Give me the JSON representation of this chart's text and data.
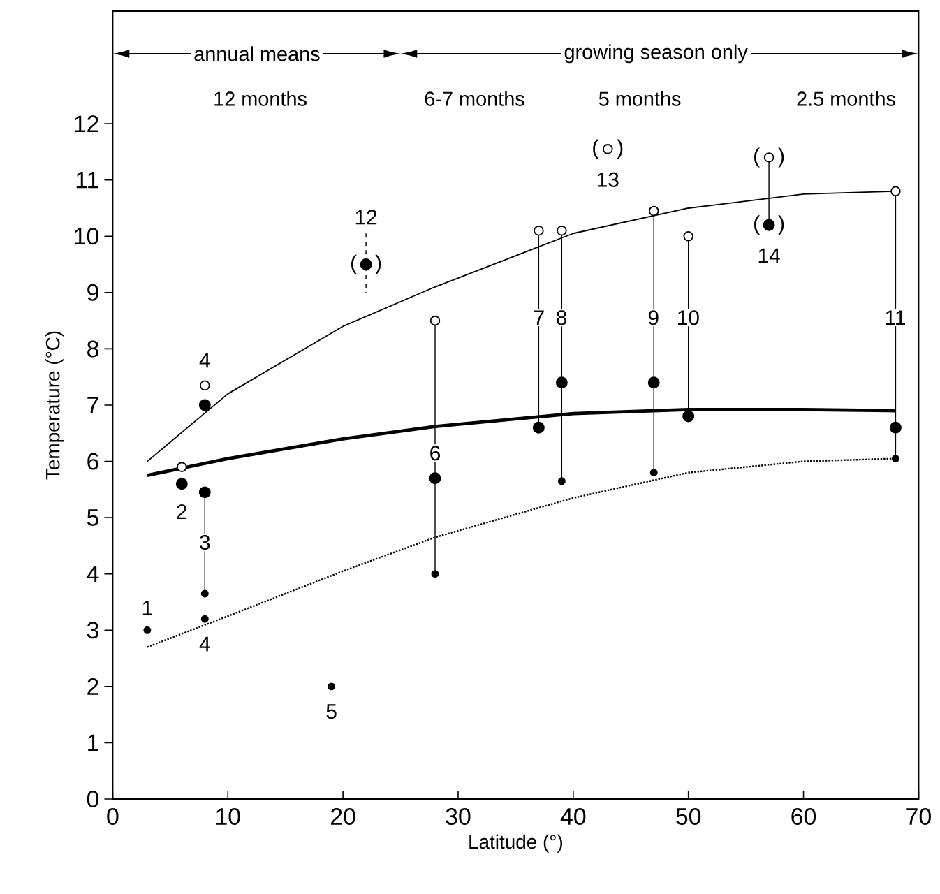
{
  "chart_data": {
    "type": "scatter",
    "xlabel": "Latitude (°)",
    "ylabel": "Temperature (°C)",
    "xlim": [
      0,
      70
    ],
    "ylim": [
      0,
      14
    ],
    "xticks": [
      0,
      10,
      20,
      30,
      40,
      50,
      60,
      70
    ],
    "yticks": [
      0,
      1,
      2,
      3,
      4,
      5,
      6,
      7,
      8,
      9,
      10,
      11,
      12
    ],
    "series": [
      {
        "type": "line",
        "color": "#000000",
        "x": [
          8,
          8
        ],
        "values": [
          5.45,
          3.65
        ]
      },
      {
        "type": "line",
        "color": "#000000",
        "x": [
          28,
          28
        ],
        "values": [
          8.5,
          4.0
        ]
      },
      {
        "type": "line",
        "color": "#000000",
        "x": [
          37,
          37
        ],
        "values": [
          10.1,
          6.6
        ]
      },
      {
        "type": "line",
        "color": "#000000",
        "x": [
          39,
          39
        ],
        "values": [
          10.1,
          5.65
        ]
      },
      {
        "type": "line",
        "color": "#000000",
        "x": [
          47,
          47
        ],
        "values": [
          10.45,
          5.8
        ]
      },
      {
        "type": "line",
        "color": "#000000",
        "x": [
          50,
          50
        ],
        "values": [
          10.0,
          6.8
        ]
      },
      {
        "type": "line",
        "color": "#000000",
        "x": [
          68,
          68
        ],
        "values": [
          10.8,
          6.05
        ]
      },
      {
        "type": "line",
        "color": "#000000",
        "x": [
          57,
          57
        ],
        "values": [
          11.4,
          10.2
        ]
      },
      {
        "type": "line",
        "color": "#000000",
        "line_style": "dashed",
        "x": [
          22,
          22
        ],
        "values": [
          10.05,
          9.0
        ]
      },
      {
        "type": "line",
        "color": "#000000",
        "x": [
          3,
          10,
          20,
          28,
          40,
          50,
          60,
          68
        ],
        "values": [
          6.0,
          7.2,
          8.4,
          9.1,
          10.05,
          10.5,
          10.75,
          10.8
        ]
      },
      {
        "type": "line",
        "color": "#000000",
        "x": [
          3,
          10,
          20,
          28,
          40,
          50,
          60,
          68
        ],
        "values": [
          5.75,
          6.05,
          6.4,
          6.62,
          6.85,
          6.92,
          6.92,
          6.9
        ]
      },
      {
        "type": "line",
        "color": "#000000",
        "line_style": "dotted",
        "x": [
          3,
          10,
          20,
          28,
          40,
          50,
          60,
          68
        ],
        "values": [
          2.7,
          3.25,
          4.05,
          4.65,
          5.35,
          5.8,
          6.0,
          6.05
        ]
      },
      {
        "color": "#ffffff",
        "marker": "circle",
        "x": [
          6,
          8,
          28,
          37,
          39,
          43,
          47,
          50,
          57,
          68
        ],
        "values": [
          5.9,
          7.35,
          8.5,
          10.1,
          10.1,
          11.55,
          10.45,
          10.0,
          11.4,
          10.8
        ]
      },
      {
        "color": "#000000",
        "marker": "circle",
        "x": [
          6,
          8,
          8,
          22,
          28,
          37,
          39,
          47,
          50,
          57,
          68
        ],
        "values": [
          5.6,
          7.0,
          5.45,
          9.5,
          5.7,
          6.6,
          7.4,
          7.4,
          6.8,
          10.2,
          6.6
        ]
      },
      {
        "color": "#000000",
        "marker": "circle",
        "x": [
          3,
          8,
          8,
          19,
          28,
          39,
          47,
          68
        ],
        "values": [
          3.0,
          3.65,
          3.2,
          2.0,
          4.0,
          5.65,
          5.8,
          6.05
        ]
      }
    ],
    "annotations": [
      "annual means",
      "growing season only",
      "12 months",
      "6-7 months",
      "5 months",
      "2.5 months",
      {
        "text": "1",
        "x": 3,
        "y": 3.0
      },
      {
        "text": "2",
        "x": 6,
        "y": 5.6
      },
      {
        "text": "3",
        "x": 8,
        "y": 5.45
      },
      {
        "text": "4",
        "x": 8,
        "y": 3.2
      },
      {
        "text": "4",
        "x": 8,
        "y": 7.35
      },
      {
        "text": "5",
        "x": 19,
        "y": 2.0
      },
      {
        "text": "6",
        "x": 28,
        "y": 5.7
      },
      "7",
      "8",
      "9",
      "10",
      "11",
      {
        "text": "12",
        "x": 22,
        "y": 9.5
      },
      {
        "text": "13",
        "x": 43,
        "y": 11.55
      },
      {
        "text": "14",
        "x": 57,
        "y": 10.2
      },
      {
        "text": "(",
        "x": 22,
        "y": 9.5
      },
      {
        "text": ")",
        "x": 22,
        "y": 9.5
      },
      {
        "text": "(",
        "x": 43,
        "y": 11.55
      },
      {
        "text": ")",
        "x": 43,
        "y": 11.55
      },
      {
        "text": "(",
        "x": 57,
        "y": 11.4
      },
      {
        "text": ")",
        "x": 57,
        "y": 11.4
      },
      {
        "text": "(",
        "x": 57,
        "y": 10.2
      },
      {
        "text": ")",
        "x": 57,
        "y": 10.2
      }
    ]
  }
}
